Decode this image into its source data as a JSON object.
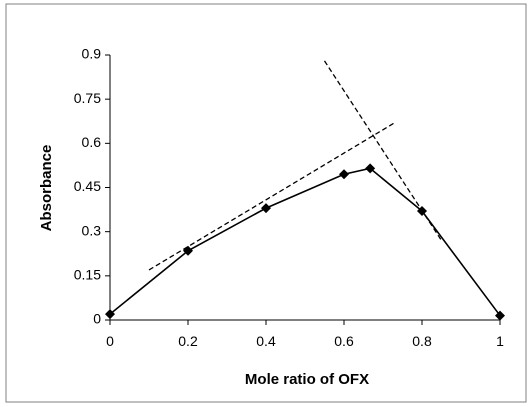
{
  "chart_data": {
    "type": "line",
    "title": "",
    "xlabel": "Mole ratio of OFX",
    "ylabel": "Absorbance",
    "xlim": [
      0,
      1
    ],
    "ylim": [
      0,
      0.9
    ],
    "x_ticks": [
      "0",
      "0.2",
      "0.4",
      "0.6",
      "0.8",
      "1"
    ],
    "y_ticks": [
      "0",
      "0.15",
      "0.3",
      "0.45",
      "0.6",
      "0.75",
      "0.9"
    ],
    "grid": false,
    "legend": "none",
    "series": [
      {
        "style": "solid-with-diamond-markers",
        "color": "#000000",
        "x": [
          0,
          0.2,
          0.4,
          0.6,
          0.667,
          0.8,
          1
        ],
        "y": [
          0.02,
          0.235,
          0.38,
          0.495,
          0.515,
          0.37,
          0.015
        ]
      }
    ],
    "tangent_lines": [
      {
        "style": "dashed",
        "x": [
          0.1,
          0.73
        ],
        "y": [
          0.17,
          0.67
        ]
      },
      {
        "style": "dashed",
        "x": [
          0.55,
          0.85
        ],
        "y": [
          0.88,
          0.27
        ]
      }
    ]
  }
}
